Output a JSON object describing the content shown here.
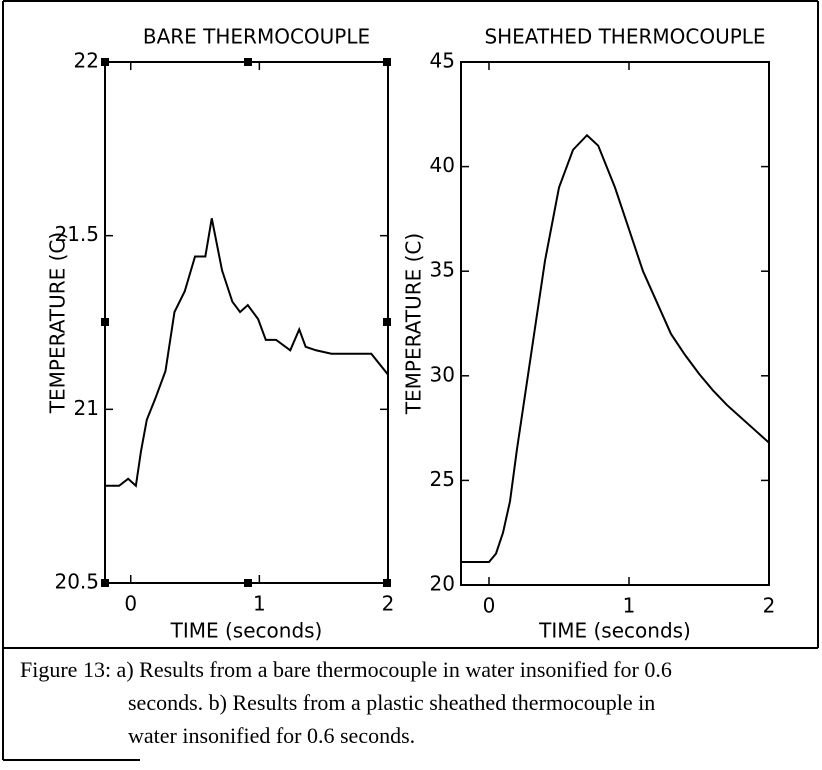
{
  "chart_data": [
    {
      "type": "line",
      "title": "BARE THERMOCOUPLE",
      "x_label": "TIME (seconds)",
      "y_label": "TEMPERATURE (C)",
      "xlim": [
        -0.2,
        2
      ],
      "xticks": [
        0,
        1,
        2
      ],
      "ylim": [
        20.5,
        22
      ],
      "yticks": [
        20.5,
        21,
        21.5,
        22
      ],
      "series": [
        {
          "color": "#000000",
          "x": [
            -0.2,
            -0.09,
            -0.02,
            0.04,
            0.08,
            0.125,
            0.19,
            0.27,
            0.34,
            0.42,
            0.5,
            0.58,
            0.63,
            0.71,
            0.79,
            0.85,
            0.91,
            0.99,
            1.05,
            1.13,
            1.24,
            1.31,
            1.36,
            1.44,
            1.56,
            1.71,
            1.87,
            2.0
          ],
          "values": [
            20.78,
            20.78,
            20.8,
            20.78,
            20.88,
            20.97,
            21.03,
            21.11,
            21.28,
            21.34,
            21.44,
            21.44,
            21.55,
            21.4,
            21.31,
            21.28,
            21.3,
            21.26,
            21.2,
            21.2,
            21.17,
            21.23,
            21.18,
            21.17,
            21.16,
            21.16,
            21.16,
            21.1
          ]
        }
      ]
    },
    {
      "type": "line",
      "title": "SHEATHED THERMOCOUPLE",
      "x_label": "TIME (seconds)",
      "y_label": "TEMPERATURE (C)",
      "xlim": [
        -0.2,
        2
      ],
      "xticks": [
        0,
        1,
        2
      ],
      "ylim": [
        20,
        45
      ],
      "yticks": [
        20,
        25,
        30,
        35,
        40,
        45
      ],
      "series": [
        {
          "color": "#000000",
          "x": [
            -0.2,
            0,
            0.05,
            0.1,
            0.15,
            0.2,
            0.3,
            0.4,
            0.5,
            0.6,
            0.7,
            0.78,
            0.9,
            1.0,
            1.1,
            1.2,
            1.3,
            1.4,
            1.5,
            1.6,
            1.7,
            1.8,
            1.9,
            2.0
          ],
          "values": [
            21.1,
            21.1,
            21.5,
            22.5,
            24,
            26.5,
            31,
            35.5,
            39,
            40.8,
            41.5,
            41,
            39,
            37,
            35,
            33.5,
            32,
            31,
            30.1,
            29.3,
            28.6,
            28,
            27.4,
            26.8
          ]
        }
      ]
    }
  ],
  "caption": [
    "Figure 13:  a) Results from a bare thermocouple in water insonified for 0.6",
    "seconds.  b)  Results from a plastic sheathed thermocouple in",
    "water insonified for 0.6 seconds."
  ]
}
